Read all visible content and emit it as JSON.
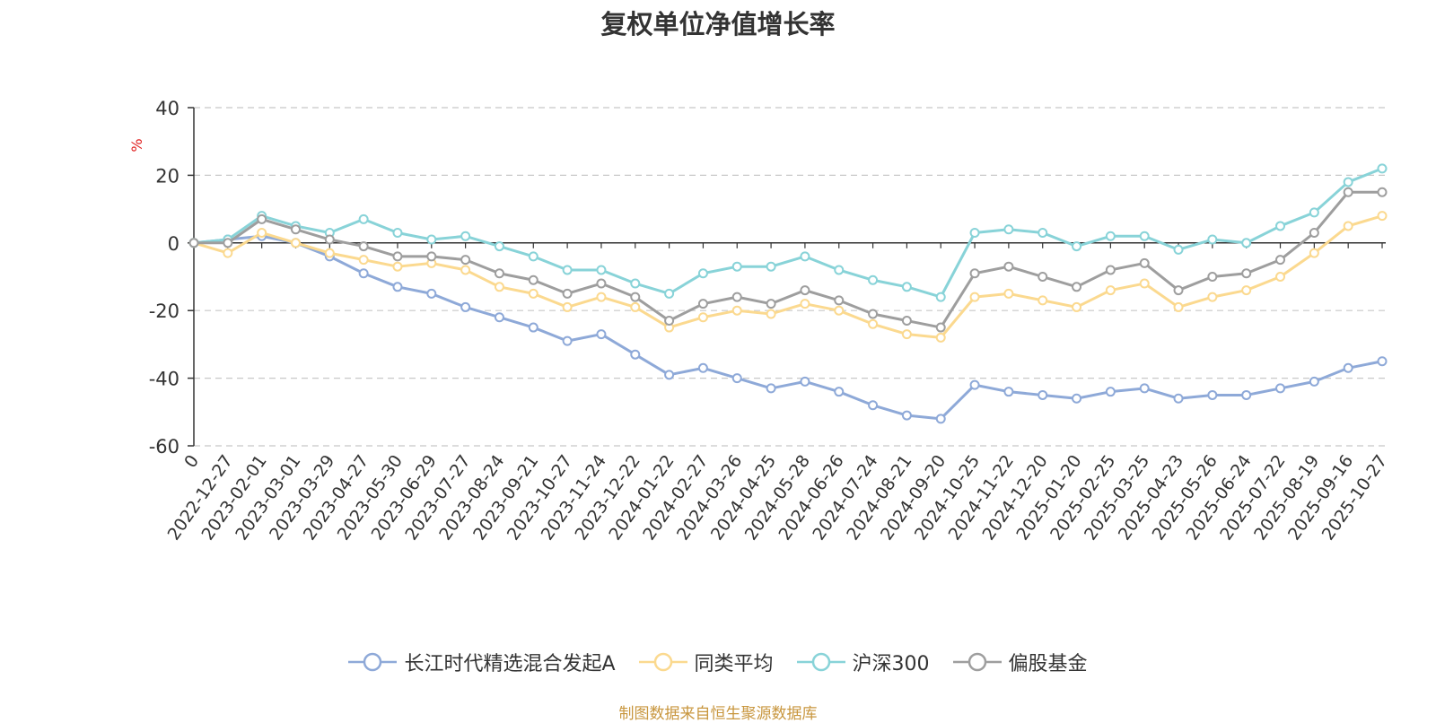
{
  "chart_data": {
    "type": "line",
    "title": "复权单位净值增长率",
    "ylabel": "%",
    "ylim": [
      -60,
      40
    ],
    "yticks": [
      40,
      20,
      0,
      -20,
      -40,
      -60
    ],
    "grid": true,
    "legend_position": "bottom",
    "categories": [
      "0",
      "2022-12-27",
      "2023-02-01",
      "2023-03-01",
      "2023-03-29",
      "2023-04-27",
      "2023-05-30",
      "2023-06-29",
      "2023-07-27",
      "2023-08-24",
      "2023-09-21",
      "2023-10-27",
      "2023-11-24",
      "2023-12-22",
      "2024-01-22",
      "2024-02-27",
      "2024-03-26",
      "2024-04-25",
      "2024-05-28",
      "2024-06-26",
      "2024-07-24",
      "2024-08-21",
      "2024-09-20",
      "2024-10-25",
      "2024-11-22",
      "2024-12-20",
      "2025-01-20",
      "2025-02-25",
      "2025-03-25",
      "2025-04-23",
      "2025-05-26",
      "2025-06-24",
      "2025-07-22",
      "2025-08-19",
      "2025-09-16",
      "2025-10-27"
    ],
    "series": [
      {
        "name": "长江时代精选混合发起A",
        "color": "#8ea9d8",
        "values": [
          0,
          1,
          2,
          0,
          -4,
          -9,
          -13,
          -15,
          -19,
          -22,
          -25,
          -29,
          -27,
          -33,
          -39,
          -37,
          -40,
          -43,
          -41,
          -44,
          -48,
          -51,
          -52,
          -42,
          -44,
          -45,
          -46,
          -44,
          -43,
          -46,
          -45,
          -45,
          -43,
          -41,
          -37,
          -35
        ]
      },
      {
        "name": "同类平均",
        "color": "#fbd98f",
        "values": [
          0,
          -3,
          3,
          0,
          -3,
          -5,
          -7,
          -6,
          -8,
          -13,
          -15,
          -19,
          -16,
          -19,
          -25,
          -22,
          -20,
          -21,
          -18,
          -20,
          -24,
          -27,
          -28,
          -16,
          -15,
          -17,
          -19,
          -14,
          -12,
          -19,
          -16,
          -14,
          -10,
          -3,
          5,
          8
        ]
      },
      {
        "name": "沪深300",
        "color": "#88d3d8",
        "values": [
          0,
          1,
          8,
          5,
          3,
          7,
          3,
          1,
          2,
          -1,
          -4,
          -8,
          -8,
          -12,
          -15,
          -9,
          -7,
          -7,
          -4,
          -8,
          -11,
          -13,
          -16,
          3,
          4,
          3,
          -1,
          2,
          2,
          -2,
          1,
          0,
          5,
          9,
          18,
          22
        ]
      },
      {
        "name": "偏股基金",
        "color": "#9e9e9e",
        "values": [
          0,
          0,
          7,
          4,
          1,
          -1,
          -4,
          -4,
          -5,
          -9,
          -11,
          -15,
          -12,
          -16,
          -23,
          -18,
          -16,
          -18,
          -14,
          -17,
          -21,
          -23,
          -25,
          -9,
          -7,
          -10,
          -13,
          -8,
          -6,
          -14,
          -10,
          -9,
          -5,
          3,
          15,
          15
        ]
      }
    ]
  },
  "source": "制图数据来自恒生聚源数据库"
}
